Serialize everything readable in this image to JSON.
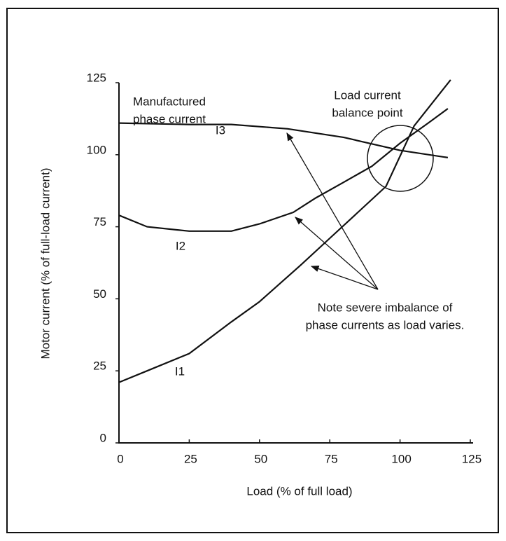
{
  "chart_data": {
    "type": "line",
    "xlabel": "Load (% of full load)",
    "ylabel": "Motor current (% of full-load current)",
    "xlim": [
      0,
      125
    ],
    "xticks": [
      0,
      25,
      50,
      75,
      100,
      125
    ],
    "ylim": [
      0,
      125
    ],
    "yticks": [
      0,
      25,
      50,
      75,
      100,
      125
    ],
    "series": [
      {
        "name": "I1",
        "color": "#111111",
        "x": [
          0,
          10,
          25,
          40,
          50,
          65,
          75,
          85,
          95,
          105,
          118
        ],
        "values": [
          21,
          25,
          31,
          42,
          49,
          62,
          71,
          80,
          89,
          110,
          126
        ]
      },
      {
        "name": "I2",
        "color": "#111111",
        "x": [
          0,
          10,
          25,
          40,
          50,
          62,
          70,
          80,
          90,
          100,
          110,
          117
        ],
        "values": [
          79,
          75,
          73.5,
          73.5,
          76,
          80,
          85,
          90.5,
          96,
          104,
          111,
          116
        ]
      },
      {
        "name": "I3",
        "color": "#111111",
        "x": [
          0,
          25,
          40,
          60,
          80,
          100,
          117
        ],
        "values": [
          111,
          110.5,
          110.5,
          109,
          106,
          101.5,
          99
        ]
      }
    ],
    "annotations": [
      {
        "lines": [
          "Manufactured",
          "phase current"
        ]
      },
      {
        "lines": [
          "Load current",
          "balance point"
        ]
      },
      {
        "lines": [
          "Note severe imbalance of",
          "phase currents as load varies."
        ]
      }
    ]
  }
}
